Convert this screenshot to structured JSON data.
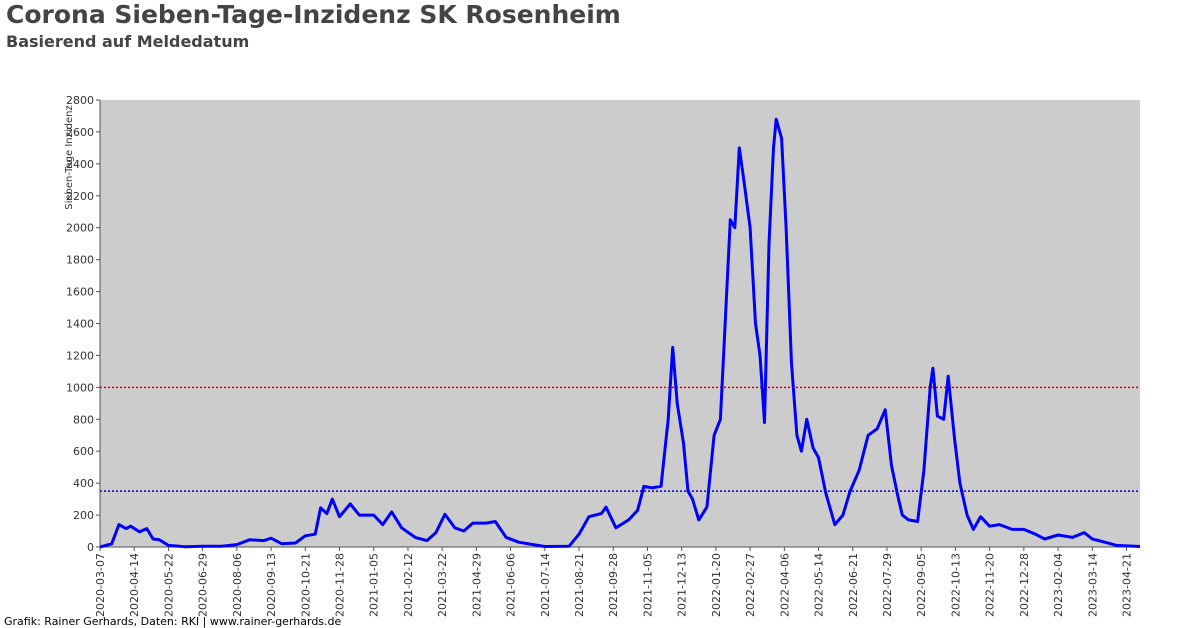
{
  "chart_data": {
    "type": "line",
    "title": "Corona Sieben-Tage-Inzidenz SK Rosenheim",
    "subtitle": "Basierend auf Meldedatum",
    "y_label": "Sieben-Tage Inzidenz",
    "source": "Grafik: Rainer Gerhards, Daten: RKI | www.rainer-gerhards.de",
    "x": [
      "2020-03-07",
      "2020-03-20",
      "2020-03-28",
      "2020-04-05",
      "2020-04-10",
      "2020-04-20",
      "2020-04-28",
      "2020-05-05",
      "2020-05-12",
      "2020-05-22",
      "2020-06-10",
      "2020-06-29",
      "2020-07-20",
      "2020-08-06",
      "2020-08-20",
      "2020-09-05",
      "2020-09-13",
      "2020-09-25",
      "2020-10-10",
      "2020-10-21",
      "2020-11-01",
      "2020-11-07",
      "2020-11-14",
      "2020-11-20",
      "2020-11-28",
      "2020-12-10",
      "2020-12-20",
      "2021-01-05",
      "2021-01-15",
      "2021-01-25",
      "2021-02-05",
      "2021-02-20",
      "2021-03-05",
      "2021-03-15",
      "2021-03-25",
      "2021-04-05",
      "2021-04-15",
      "2021-04-25",
      "2021-05-10",
      "2021-05-20",
      "2021-06-01",
      "2021-06-15",
      "2021-07-01",
      "2021-07-14",
      "2021-08-10",
      "2021-08-21",
      "2021-09-01",
      "2021-09-15",
      "2021-09-20",
      "2021-10-01",
      "2021-10-15",
      "2021-10-25",
      "2021-11-01",
      "2021-11-10",
      "2021-11-20",
      "2021-11-28",
      "2021-12-03",
      "2021-12-08",
      "2021-12-15",
      "2021-12-20",
      "2021-12-25",
      "2022-01-01",
      "2022-01-10",
      "2022-01-18",
      "2022-01-25",
      "2022-02-05",
      "2022-02-10",
      "2022-02-15",
      "2022-02-20",
      "2022-02-27",
      "2022-03-05",
      "2022-03-10",
      "2022-03-15",
      "2022-03-20",
      "2022-03-25",
      "2022-03-28",
      "2022-04-03",
      "2022-04-08",
      "2022-04-14",
      "2022-04-20",
      "2022-04-25",
      "2022-05-01",
      "2022-05-08",
      "2022-05-14",
      "2022-05-22",
      "2022-06-01",
      "2022-06-10",
      "2022-06-18",
      "2022-06-28",
      "2022-07-08",
      "2022-07-18",
      "2022-07-27",
      "2022-08-03",
      "2022-08-10",
      "2022-08-15",
      "2022-08-22",
      "2022-09-01",
      "2022-09-08",
      "2022-09-15",
      "2022-09-18",
      "2022-09-23",
      "2022-09-30",
      "2022-10-05",
      "2022-10-12",
      "2022-10-18",
      "2022-10-26",
      "2022-11-02",
      "2022-11-10",
      "2022-11-20",
      "2022-12-01",
      "2022-12-15",
      "2022-12-28",
      "2023-01-10",
      "2023-01-20",
      "2023-02-04",
      "2023-02-20",
      "2023-03-05",
      "2023-03-14",
      "2023-03-28",
      "2023-04-10",
      "2023-05-06"
    ],
    "series": [
      {
        "color": "#0000ff",
        "values": [
          0,
          20,
          140,
          115,
          130,
          95,
          115,
          50,
          45,
          10,
          2,
          5,
          5,
          15,
          45,
          40,
          55,
          20,
          25,
          70,
          80,
          245,
          210,
          300,
          190,
          270,
          200,
          200,
          140,
          220,
          120,
          60,
          40,
          90,
          205,
          120,
          100,
          150,
          150,
          160,
          60,
          30,
          15,
          3,
          5,
          80,
          190,
          210,
          250,
          120,
          170,
          230,
          380,
          370,
          380,
          800,
          1250,
          900,
          650,
          350,
          300,
          170,
          250,
          700,
          800,
          2050,
          2000,
          2500,
          2300,
          2000,
          1400,
          1200,
          780,
          1900,
          2500,
          2680,
          2560,
          2000,
          1150,
          700,
          600,
          800,
          620,
          560,
          340,
          140,
          200,
          350,
          480,
          700,
          740,
          860,
          510,
          320,
          200,
          170,
          160,
          480,
          1000,
          1120,
          820,
          800,
          1070,
          680,
          400,
          200,
          110,
          190,
          130,
          140,
          110,
          110,
          80,
          50,
          75,
          60,
          90,
          50,
          30,
          10,
          3
        ]
      }
    ],
    "xlim": [
      "2020-03-07",
      "2023-05-06"
    ],
    "xticks": [
      "2020-03-07",
      "2020-04-14",
      "2020-05-22",
      "2020-06-29",
      "2020-08-06",
      "2020-09-13",
      "2020-10-21",
      "2020-11-28",
      "2021-01-05",
      "2021-02-12",
      "2021-03-22",
      "2021-04-29",
      "2021-06-06",
      "2021-07-14",
      "2021-08-21",
      "2021-09-28",
      "2021-11-05",
      "2021-12-13",
      "2022-01-20",
      "2022-02-27",
      "2022-04-06",
      "2022-05-14",
      "2022-06-21",
      "2022-07-29",
      "2022-09-05",
      "2022-10-13",
      "2022-11-20",
      "2022-12-28",
      "2023-02-04",
      "2023-03-14",
      "2023-04-21"
    ],
    "ylim": [
      0,
      2800
    ],
    "yticks": [
      0,
      200,
      400,
      600,
      800,
      1000,
      1200,
      1400,
      1600,
      1800,
      2000,
      2200,
      2400,
      2600,
      2800
    ],
    "reference_lines": [
      {
        "value": 1000,
        "color": "#dd0000"
      },
      {
        "value": 350,
        "color": "#0000cc"
      }
    ],
    "plot_background": "#cccccc"
  }
}
